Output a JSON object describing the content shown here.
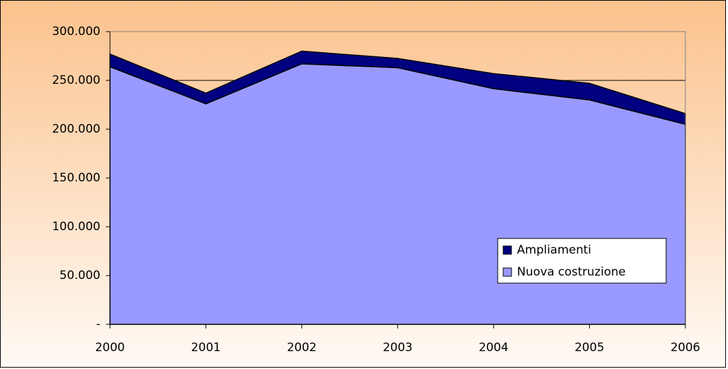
{
  "chart_data": {
    "type": "area",
    "categories": [
      "2000",
      "2001",
      "2002",
      "2003",
      "2004",
      "2005",
      "2006"
    ],
    "series": [
      {
        "name": "Nuova costruzione",
        "color": "#9999ff",
        "values": [
          264000,
          226000,
          267000,
          263000,
          241500,
          230000,
          205000
        ]
      },
      {
        "name": "Ampliamenti",
        "color": "#000080",
        "values": [
          13000,
          11000,
          13000,
          9500,
          15500,
          17000,
          11000
        ]
      }
    ],
    "stacked": true,
    "ylim": [
      0,
      300000
    ],
    "yticks": [
      {
        "value": 0,
        "label": "-"
      },
      {
        "value": 50000,
        "label": "50.000"
      },
      {
        "value": 100000,
        "label": "100.000"
      },
      {
        "value": 150000,
        "label": "150.000"
      },
      {
        "value": 200000,
        "label": "200.000"
      },
      {
        "value": 250000,
        "label": "250.000"
      },
      {
        "value": 300000,
        "label": "300.000"
      }
    ],
    "grid": true,
    "legend": "lower right"
  }
}
